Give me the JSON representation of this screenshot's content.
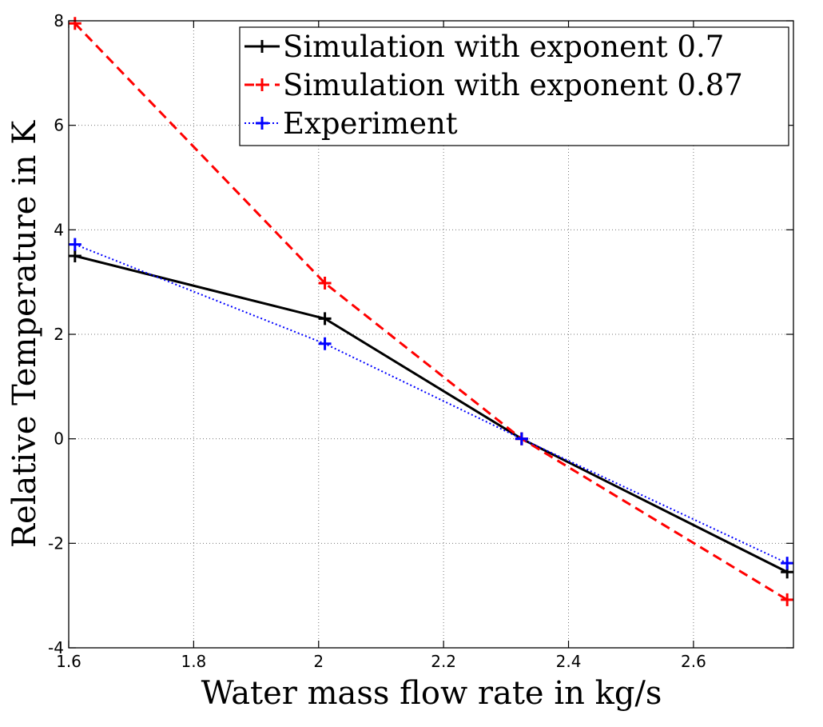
{
  "chart_data": {
    "type": "line",
    "title": "",
    "xlabel": "Water mass flow rate in kg/s",
    "ylabel": "Relative Temperature in K",
    "xlim": [
      1.6,
      2.76
    ],
    "ylim": [
      -4,
      8
    ],
    "xticks": [
      1.6,
      1.8,
      2.0,
      2.2,
      2.4,
      2.6
    ],
    "xtick_labels": [
      "1.6",
      "1.8",
      "2",
      "2.2",
      "2.4",
      "2.6"
    ],
    "yticks": [
      -4,
      -2,
      0,
      2,
      4,
      6,
      8
    ],
    "ytick_labels": [
      "-4",
      "-2",
      "0",
      "2",
      "4",
      "6",
      "8"
    ],
    "grid": true,
    "legend_position": "top-right",
    "series": [
      {
        "name": "Simulation with exponent 0.7",
        "color": "#000000",
        "line_style": "solid",
        "marker": "+",
        "x": [
          1.61,
          2.01,
          2.325,
          2.75
        ],
        "y": [
          3.5,
          2.3,
          0.0,
          -2.55
        ]
      },
      {
        "name": "Simulation with exponent 0.87",
        "color": "#ff0000",
        "line_style": "dashed",
        "marker": "+",
        "x": [
          1.61,
          2.01,
          2.325,
          2.75
        ],
        "y": [
          7.95,
          2.98,
          0.0,
          -3.08
        ]
      },
      {
        "name": "Experiment",
        "color": "#0000ff",
        "line_style": "dotted",
        "marker": "+",
        "x": [
          1.61,
          2.01,
          2.325,
          2.75
        ],
        "y": [
          3.72,
          1.82,
          0.0,
          -2.38
        ]
      }
    ]
  }
}
